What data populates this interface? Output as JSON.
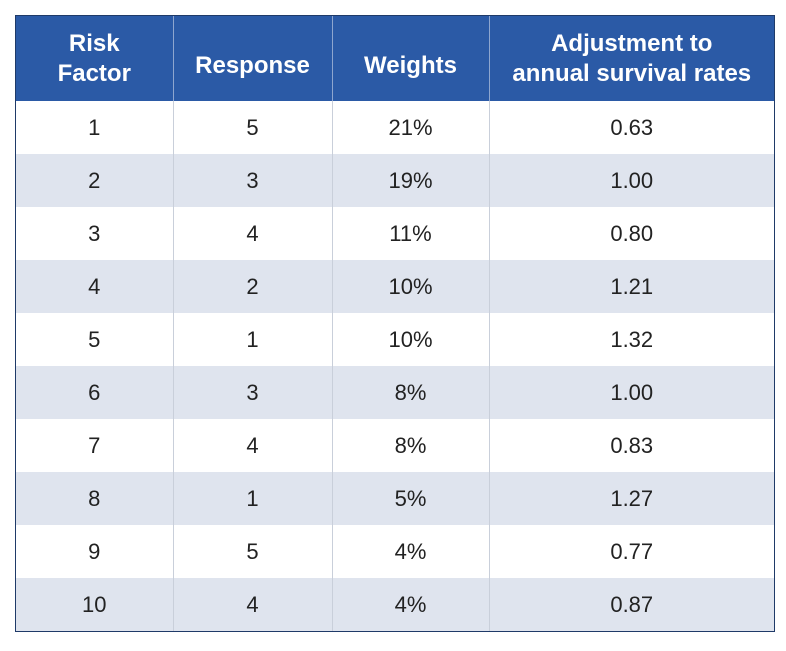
{
  "table": {
    "headers": [
      "Risk\nFactor",
      "Response",
      "Weights",
      "Adjustment to\nannual survival rates"
    ],
    "header_lines": [
      [
        "Risk",
        "Factor"
      ],
      [
        "Response"
      ],
      [
        "Weights"
      ],
      [
        "Adjustment to",
        "annual survival rates"
      ]
    ],
    "rows": [
      [
        "1",
        "5",
        "21%",
        "0.63"
      ],
      [
        "2",
        "3",
        "19%",
        "1.00"
      ],
      [
        "3",
        "4",
        "11%",
        "0.80"
      ],
      [
        "4",
        "2",
        "10%",
        "1.21"
      ],
      [
        "5",
        "1",
        "10%",
        "1.32"
      ],
      [
        "6",
        "3",
        "8%",
        "1.00"
      ],
      [
        "7",
        "4",
        "8%",
        "0.83"
      ],
      [
        "8",
        "1",
        "5%",
        "1.27"
      ],
      [
        "9",
        "5",
        "4%",
        "0.77"
      ],
      [
        "10",
        "4",
        "4%",
        "0.87"
      ]
    ]
  },
  "colors": {
    "header_bg": "#2b5aa6",
    "header_text": "#ffffff",
    "row_alt_bg": "#dfe4ee",
    "row_bg": "#ffffff"
  }
}
